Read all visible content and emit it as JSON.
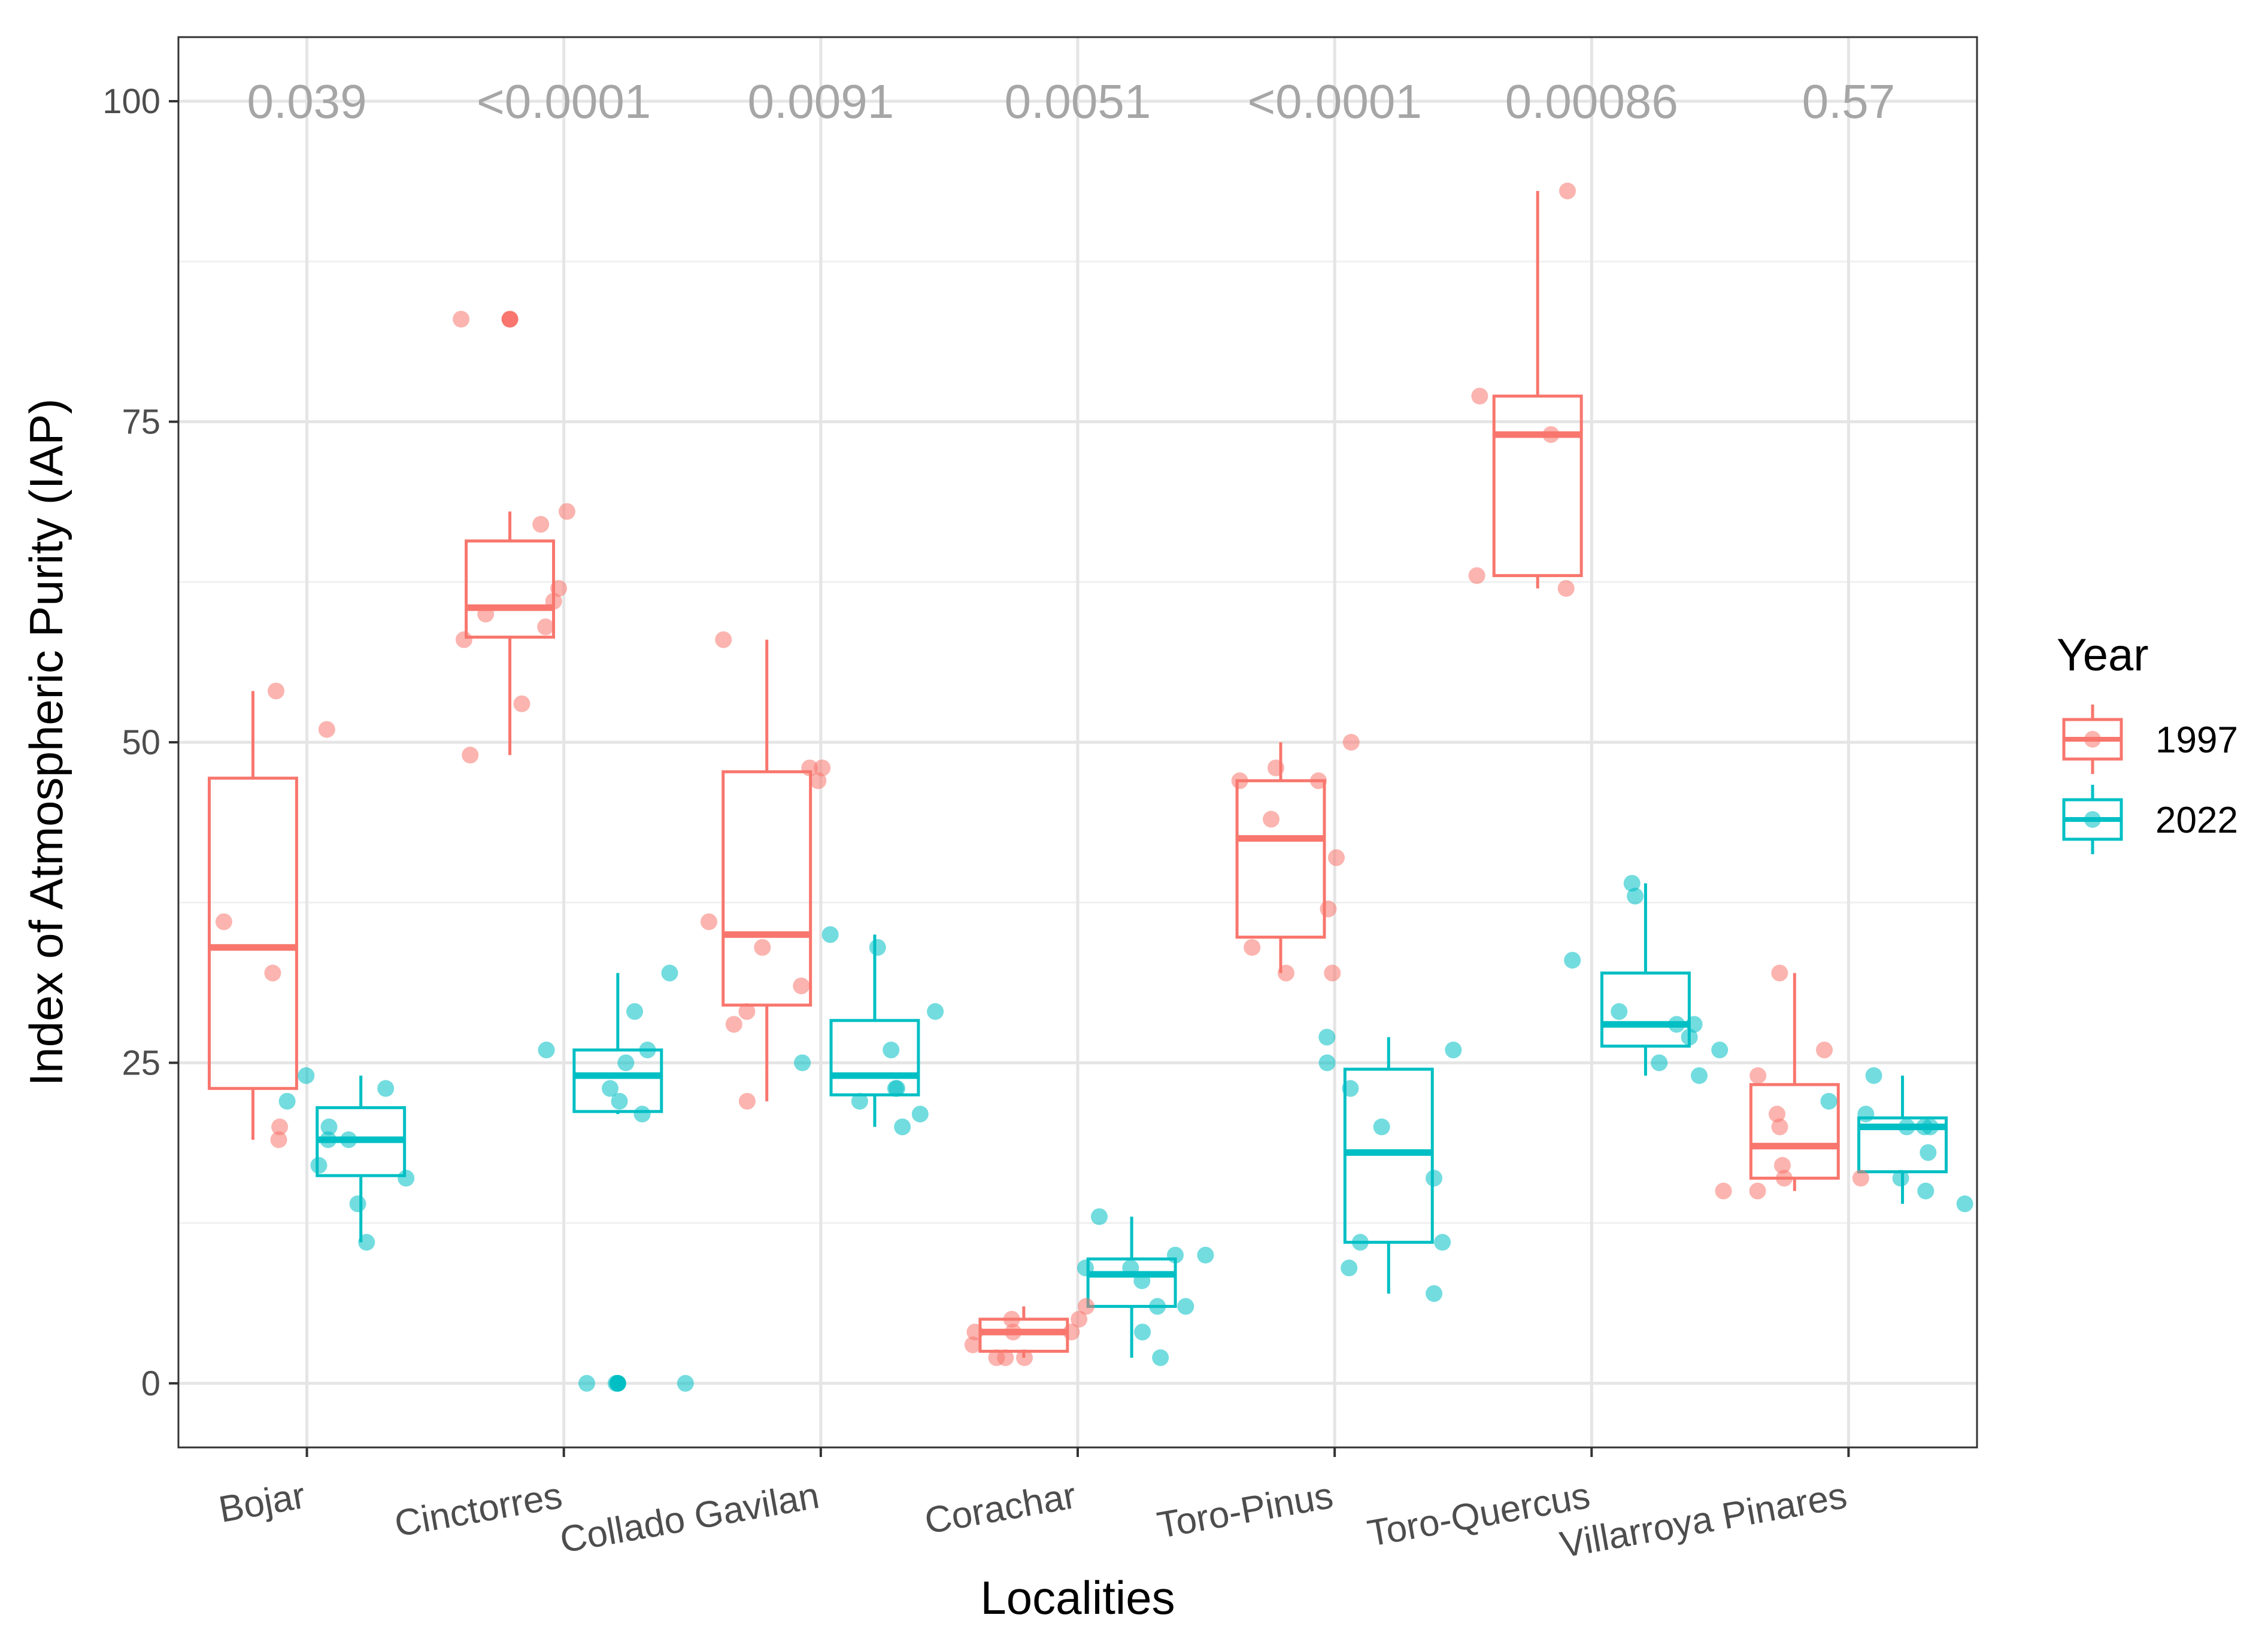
{
  "chart_data": {
    "type": "box",
    "xlabel": "Localities",
    "ylabel": "Index of Atmospheric Purity (IAP)",
    "ylim": [
      -5,
      105
    ],
    "y_ticks": [
      0,
      25,
      50,
      75,
      100
    ],
    "grid": true,
    "legend": {
      "title": "Year",
      "position": "right"
    },
    "categories": [
      "Bojar",
      "Cinctorres",
      "Collado Gavilan",
      "Corachar",
      "Toro-Pinus",
      "Toro-Quercus",
      "Villarroya Pinares"
    ],
    "p_values": [
      "0.039",
      "<0.0001",
      "0.0091",
      "0.0051",
      "<0.0001",
      "0.00086",
      "0.57"
    ],
    "series": [
      {
        "name": "1997",
        "color": "#F8766D",
        "boxes": [
          {
            "min": 19,
            "q1": 23,
            "median": 34,
            "q3": 47.2,
            "max": 54,
            "outliers": []
          },
          {
            "min": 49,
            "q1": 58.2,
            "median": 60.5,
            "q3": 65.7,
            "max": 68,
            "outliers": [
              83
            ]
          },
          {
            "min": 22,
            "q1": 29.5,
            "median": 35,
            "q3": 47.7,
            "max": 58,
            "outliers": []
          },
          {
            "min": 2,
            "q1": 2.5,
            "median": 4,
            "q3": 5,
            "max": 6,
            "outliers": []
          },
          {
            "min": 32,
            "q1": 34.8,
            "median": 42.5,
            "q3": 47,
            "max": 50,
            "outliers": []
          },
          {
            "min": 62,
            "q1": 63,
            "median": 74,
            "q3": 77,
            "max": 93,
            "outliers": []
          },
          {
            "min": 15,
            "q1": 16,
            "median": 18.5,
            "q3": 23.3,
            "max": 32,
            "outliers": []
          }
        ],
        "points": [
          [
            54,
            36,
            32,
            51,
            20,
            19
          ],
          [
            83,
            68,
            67,
            62,
            59,
            60,
            61,
            58,
            53,
            49
          ],
          [
            58,
            48,
            48,
            47,
            36,
            34,
            31,
            29,
            28,
            22
          ],
          [
            6,
            5,
            5,
            4,
            4,
            4,
            3,
            2,
            2,
            2
          ],
          [
            50,
            48,
            47,
            47,
            44,
            41,
            37,
            34,
            32,
            32
          ],
          [
            93,
            77,
            74,
            63,
            62
          ],
          [
            32,
            26,
            24,
            21,
            20,
            17,
            16,
            16,
            15,
            15
          ]
        ]
      },
      {
        "name": "2022",
        "color": "#00BFC4",
        "boxes": [
          {
            "min": 11,
            "q1": 16.2,
            "median": 19,
            "q3": 21.5,
            "max": 24,
            "outliers": []
          },
          {
            "min": 21,
            "q1": 21.2,
            "median": 24,
            "q3": 26,
            "max": 32,
            "outliers": [
              0
            ]
          },
          {
            "min": 20,
            "q1": 22.5,
            "median": 24,
            "q3": 28.3,
            "max": 35,
            "outliers": []
          },
          {
            "min": 2,
            "q1": 6,
            "median": 8.5,
            "q3": 9.7,
            "max": 13,
            "outliers": []
          },
          {
            "min": 7,
            "q1": 11,
            "median": 18,
            "q3": 24.5,
            "max": 27,
            "outliers": []
          },
          {
            "min": 24,
            "q1": 26.3,
            "median": 28,
            "q3": 32,
            "max": 39,
            "outliers": []
          },
          {
            "min": 14,
            "q1": 16.5,
            "median": 20,
            "q3": 20.7,
            "max": 24,
            "outliers": []
          }
        ],
        "points": [
          [
            24,
            23,
            22,
            20,
            19,
            19,
            17,
            16,
            14,
            11
          ],
          [
            32,
            29,
            26,
            26,
            25,
            23,
            22,
            21,
            0,
            0,
            0
          ],
          [
            35,
            34,
            29,
            26,
            25,
            23,
            23,
            22,
            21,
            20
          ],
          [
            13,
            10,
            10,
            9,
            9,
            8,
            6,
            6,
            4,
            2
          ],
          [
            27,
            26,
            25,
            23,
            20,
            16,
            11,
            11,
            9,
            7
          ],
          [
            39,
            38,
            33,
            29,
            28,
            28,
            27,
            26,
            25,
            24
          ],
          [
            24,
            22,
            21,
            20,
            20,
            20,
            18,
            16,
            15,
            14
          ]
        ]
      }
    ]
  }
}
